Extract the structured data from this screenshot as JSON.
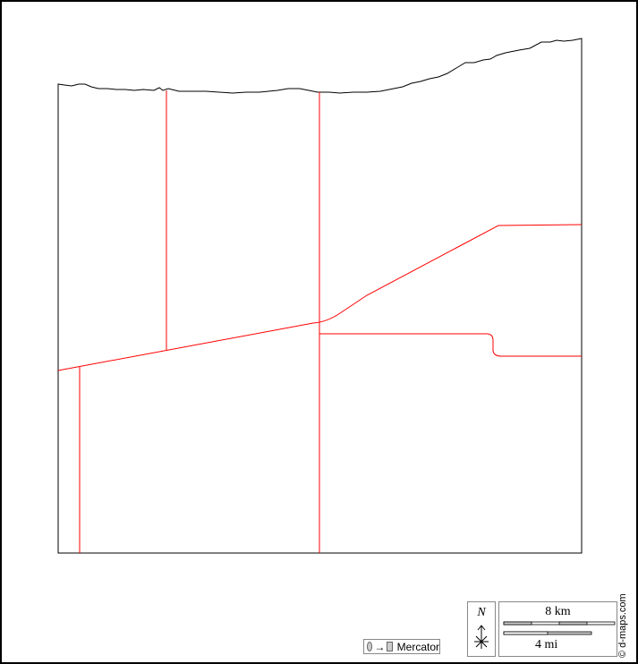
{
  "map": {
    "boundary_color": "#000000",
    "road_color": "#ff0000"
  },
  "projection": {
    "label": "Mercator",
    "arrow": "→"
  },
  "north_arrow": {
    "label": "N"
  },
  "scale": {
    "km_label": "8 km",
    "mi_label": "4 mi"
  },
  "credit": "© d-maps.com"
}
